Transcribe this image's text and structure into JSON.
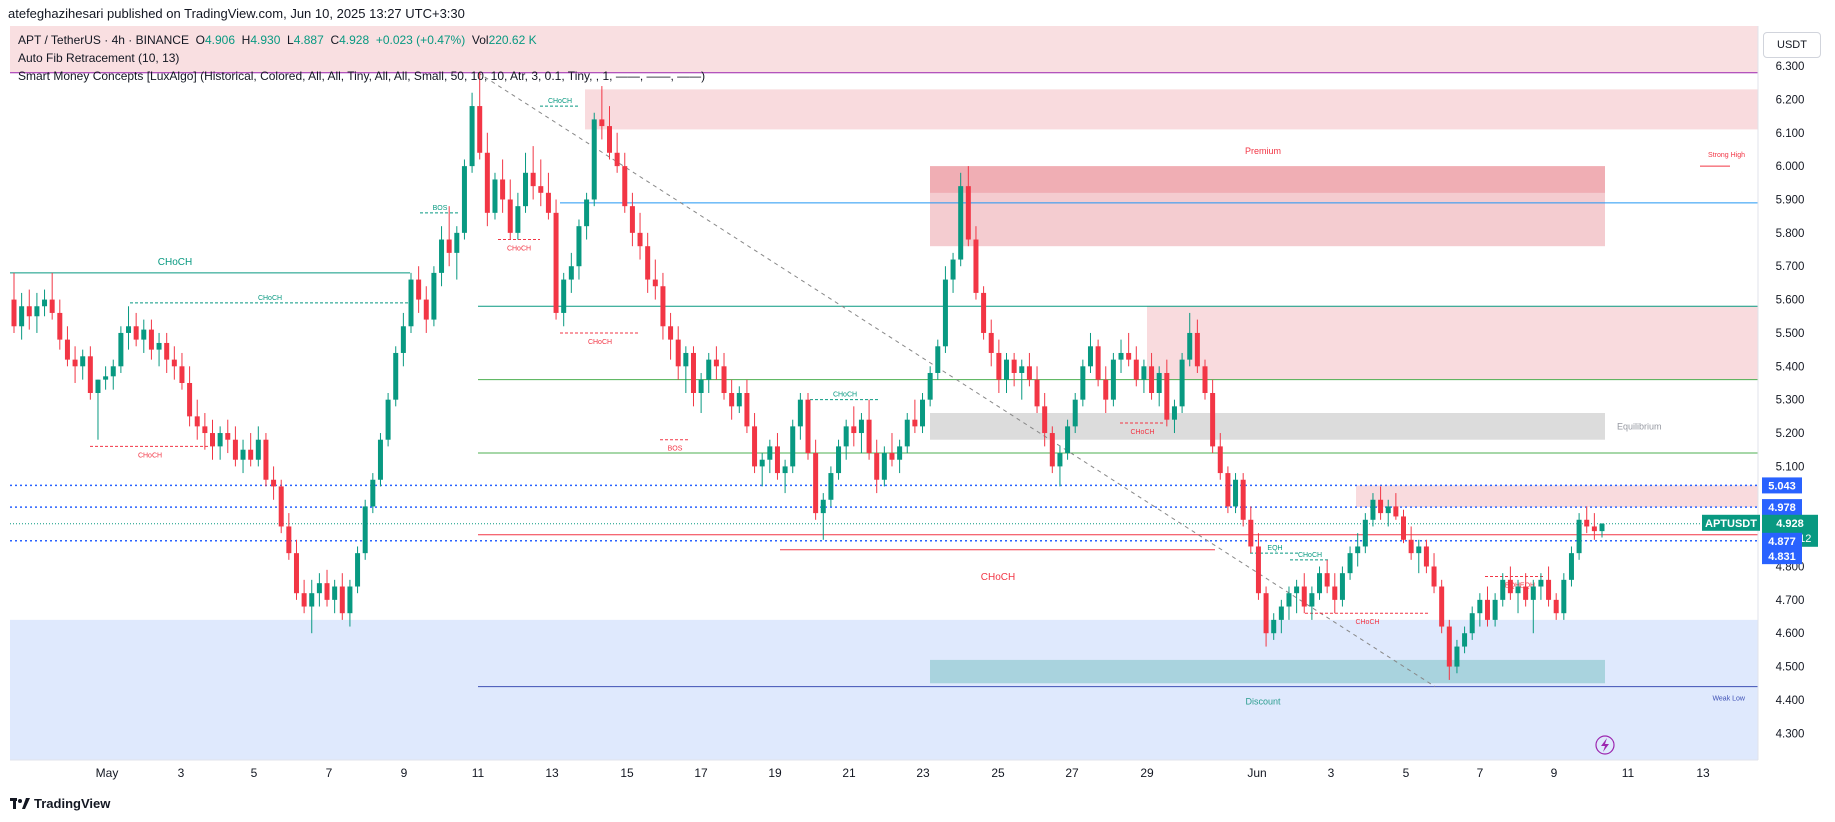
{
  "header": {
    "published_line": "atefeghazihesari published on TradingView.com, Jun 10, 2025 13:27 UTC+3:30"
  },
  "legend": {
    "symbol": "APT / TetherUS · 4h · BINANCE",
    "o_label": "O",
    "o": "4.906",
    "h_label": "H",
    "h": "4.930",
    "l_label": "L",
    "l": "4.887",
    "c_label": "C",
    "c": "4.928",
    "change": "+0.023 (+0.47%)",
    "vol_label": "Vol",
    "vol": "220.62 K",
    "indicator1": "Auto Fib Retracement (10, 13)",
    "indicator2": "Smart Money Concepts [LuxAlgo] (Historical, Colored, All, All, Tiny, All, All, Small, 50, 10, 10, Atr, 3, 0.1, Tiny, , 1, ——, ——, ——)"
  },
  "currency_button": "USDT",
  "footer": {
    "brand": "TradingView"
  },
  "colors": {
    "up": "#089981",
    "down": "#f23645",
    "fib_blue": "#2962ff",
    "premium_zone": "#f8d7da",
    "discount_zone": "#dbe7fd",
    "smc_green": "#089981",
    "smc_red": "#f23645"
  },
  "chart_data": {
    "type": "candlestick",
    "title": "APT / TetherUS · 4h · BINANCE",
    "interval": "4h",
    "ylim": [
      4.22,
      6.42
    ],
    "y_ticks": [
      "6.300",
      "6.200",
      "6.100",
      "6.000",
      "5.900",
      "5.800",
      "5.700",
      "5.600",
      "5.500",
      "5.400",
      "5.300",
      "5.200",
      "5.100",
      "4.900",
      "4.800",
      "4.700",
      "4.600",
      "4.500",
      "4.400",
      "4.300"
    ],
    "x_ticks": [
      "May",
      "3",
      "5",
      "7",
      "9",
      "11",
      "13",
      "15",
      "17",
      "19",
      "21",
      "23",
      "25",
      "27",
      "29",
      "Jun",
      "3",
      "5",
      "7",
      "9",
      "11",
      "13"
    ],
    "ohlc": [
      [
        5.6,
        5.68,
        5.5,
        5.52
      ],
      [
        5.52,
        5.62,
        5.48,
        5.58
      ],
      [
        5.58,
        5.63,
        5.51,
        5.55
      ],
      [
        5.55,
        5.62,
        5.5,
        5.58
      ],
      [
        5.58,
        5.63,
        5.55,
        5.6
      ],
      [
        5.6,
        5.68,
        5.54,
        5.56
      ],
      [
        5.56,
        5.6,
        5.45,
        5.48
      ],
      [
        5.48,
        5.52,
        5.4,
        5.42
      ],
      [
        5.42,
        5.46,
        5.35,
        5.4
      ],
      [
        5.4,
        5.45,
        5.36,
        5.43
      ],
      [
        5.43,
        5.46,
        5.3,
        5.32
      ],
      [
        5.32,
        5.36,
        5.18,
        5.36
      ],
      [
        5.36,
        5.4,
        5.33,
        5.37
      ],
      [
        5.37,
        5.42,
        5.33,
        5.4
      ],
      [
        5.4,
        5.52,
        5.38,
        5.5
      ],
      [
        5.5,
        5.58,
        5.45,
        5.52
      ],
      [
        5.52,
        5.56,
        5.46,
        5.48
      ],
      [
        5.48,
        5.54,
        5.44,
        5.51
      ],
      [
        5.51,
        5.54,
        5.42,
        5.45
      ],
      [
        5.45,
        5.5,
        5.4,
        5.47
      ],
      [
        5.47,
        5.5,
        5.38,
        5.42
      ],
      [
        5.42,
        5.46,
        5.36,
        5.4
      ],
      [
        5.4,
        5.44,
        5.33,
        5.35
      ],
      [
        5.35,
        5.4,
        5.22,
        5.25
      ],
      [
        5.25,
        5.3,
        5.18,
        5.22
      ],
      [
        5.22,
        5.26,
        5.15,
        5.2
      ],
      [
        5.2,
        5.24,
        5.12,
        5.16
      ],
      [
        5.16,
        5.22,
        5.12,
        5.2
      ],
      [
        5.2,
        5.24,
        5.14,
        5.18
      ],
      [
        5.18,
        5.22,
        5.1,
        5.12
      ],
      [
        5.12,
        5.18,
        5.08,
        5.15
      ],
      [
        5.15,
        5.2,
        5.1,
        5.12
      ],
      [
        5.12,
        5.22,
        5.1,
        5.18
      ],
      [
        5.18,
        5.2,
        5.04,
        5.06
      ],
      [
        5.06,
        5.1,
        5.0,
        5.04
      ],
      [
        5.04,
        5.06,
        4.9,
        4.92
      ],
      [
        4.92,
        4.96,
        4.82,
        4.84
      ],
      [
        4.84,
        4.88,
        4.7,
        4.72
      ],
      [
        4.72,
        4.76,
        4.66,
        4.68
      ],
      [
        4.68,
        4.76,
        4.6,
        4.72
      ],
      [
        4.72,
        4.78,
        4.68,
        4.75
      ],
      [
        4.75,
        4.79,
        4.68,
        4.7
      ],
      [
        4.7,
        4.76,
        4.66,
        4.74
      ],
      [
        4.74,
        4.78,
        4.64,
        4.66
      ],
      [
        4.66,
        4.76,
        4.62,
        4.74
      ],
      [
        4.74,
        4.86,
        4.72,
        4.84
      ],
      [
        4.84,
        5.0,
        4.82,
        4.98
      ],
      [
        4.98,
        5.08,
        4.96,
        5.06
      ],
      [
        5.06,
        5.2,
        5.04,
        5.18
      ],
      [
        5.18,
        5.32,
        5.16,
        5.3
      ],
      [
        5.3,
        5.46,
        5.28,
        5.44
      ],
      [
        5.44,
        5.56,
        5.4,
        5.52
      ],
      [
        5.52,
        5.68,
        5.5,
        5.66
      ],
      [
        5.66,
        5.7,
        5.56,
        5.6
      ],
      [
        5.6,
        5.64,
        5.5,
        5.54
      ],
      [
        5.54,
        5.7,
        5.52,
        5.68
      ],
      [
        5.68,
        5.82,
        5.64,
        5.78
      ],
      [
        5.78,
        5.88,
        5.7,
        5.74
      ],
      [
        5.74,
        5.82,
        5.66,
        5.8
      ],
      [
        5.8,
        6.02,
        5.78,
        6.0
      ],
      [
        6.0,
        6.22,
        5.98,
        6.18
      ],
      [
        6.18,
        6.28,
        6.02,
        6.04
      ],
      [
        6.04,
        6.1,
        5.82,
        5.86
      ],
      [
        5.86,
        5.98,
        5.84,
        5.96
      ],
      [
        5.96,
        6.02,
        5.86,
        5.9
      ],
      [
        5.9,
        5.96,
        5.78,
        5.8
      ],
      [
        5.8,
        5.92,
        5.78,
        5.88
      ],
      [
        5.88,
        6.04,
        5.86,
        5.98
      ],
      [
        5.98,
        6.06,
        5.9,
        5.94
      ],
      [
        5.94,
        6.02,
        5.88,
        5.92
      ],
      [
        5.92,
        5.98,
        5.84,
        5.86
      ],
      [
        5.86,
        5.9,
        5.54,
        5.56
      ],
      [
        5.56,
        5.68,
        5.52,
        5.66
      ],
      [
        5.66,
        5.74,
        5.62,
        5.7
      ],
      [
        5.7,
        5.84,
        5.66,
        5.82
      ],
      [
        5.82,
        5.92,
        5.78,
        5.9
      ],
      [
        5.9,
        6.16,
        5.88,
        6.14
      ],
      [
        6.14,
        6.24,
        6.08,
        6.12
      ],
      [
        6.12,
        6.18,
        6.02,
        6.04
      ],
      [
        6.04,
        6.1,
        5.98,
        6.0
      ],
      [
        6.0,
        6.04,
        5.86,
        5.88
      ],
      [
        5.88,
        5.92,
        5.76,
        5.8
      ],
      [
        5.8,
        5.86,
        5.72,
        5.76
      ],
      [
        5.76,
        5.8,
        5.62,
        5.66
      ],
      [
        5.66,
        5.72,
        5.6,
        5.64
      ],
      [
        5.64,
        5.68,
        5.48,
        5.52
      ],
      [
        5.52,
        5.56,
        5.42,
        5.48
      ],
      [
        5.48,
        5.52,
        5.36,
        5.4
      ],
      [
        5.4,
        5.46,
        5.32,
        5.44
      ],
      [
        5.44,
        5.46,
        5.28,
        5.32
      ],
      [
        5.32,
        5.38,
        5.26,
        5.36
      ],
      [
        5.36,
        5.44,
        5.32,
        5.42
      ],
      [
        5.42,
        5.46,
        5.36,
        5.4
      ],
      [
        5.4,
        5.44,
        5.3,
        5.32
      ],
      [
        5.32,
        5.36,
        5.24,
        5.28
      ],
      [
        5.28,
        5.34,
        5.26,
        5.32
      ],
      [
        5.32,
        5.36,
        5.2,
        5.22
      ],
      [
        5.22,
        5.26,
        5.08,
        5.1
      ],
      [
        5.1,
        5.14,
        5.04,
        5.12
      ],
      [
        5.12,
        5.18,
        5.08,
        5.16
      ],
      [
        5.16,
        5.2,
        5.06,
        5.08
      ],
      [
        5.08,
        5.12,
        5.02,
        5.1
      ],
      [
        5.1,
        5.24,
        5.08,
        5.22
      ],
      [
        5.22,
        5.32,
        5.18,
        5.3
      ],
      [
        5.3,
        5.32,
        5.12,
        5.14
      ],
      [
        5.14,
        5.18,
        4.94,
        4.96
      ],
      [
        4.96,
        5.02,
        4.88,
        5.0
      ],
      [
        5.0,
        5.1,
        4.98,
        5.08
      ],
      [
        5.08,
        5.18,
        5.06,
        5.16
      ],
      [
        5.16,
        5.24,
        5.12,
        5.22
      ],
      [
        5.22,
        5.28,
        5.16,
        5.2
      ],
      [
        5.2,
        5.26,
        5.14,
        5.24
      ],
      [
        5.24,
        5.3,
        5.12,
        5.14
      ],
      [
        5.14,
        5.18,
        5.02,
        5.06
      ],
      [
        5.06,
        5.16,
        5.04,
        5.14
      ],
      [
        5.14,
        5.2,
        5.1,
        5.12
      ],
      [
        5.12,
        5.18,
        5.08,
        5.16
      ],
      [
        5.16,
        5.26,
        5.14,
        5.24
      ],
      [
        5.24,
        5.3,
        5.2,
        5.22
      ],
      [
        5.22,
        5.32,
        5.2,
        5.3
      ],
      [
        5.3,
        5.4,
        5.28,
        5.38
      ],
      [
        5.38,
        5.48,
        5.36,
        5.46
      ],
      [
        5.46,
        5.7,
        5.44,
        5.66
      ],
      [
        5.66,
        5.74,
        5.62,
        5.72
      ],
      [
        5.72,
        5.98,
        5.7,
        5.94
      ],
      [
        5.94,
        6.0,
        5.76,
        5.78
      ],
      [
        5.78,
        5.82,
        5.6,
        5.62
      ],
      [
        5.62,
        5.64,
        5.48,
        5.5
      ],
      [
        5.5,
        5.54,
        5.4,
        5.44
      ],
      [
        5.44,
        5.48,
        5.32,
        5.36
      ],
      [
        5.36,
        5.44,
        5.32,
        5.42
      ],
      [
        5.42,
        5.44,
        5.34,
        5.38
      ],
      [
        5.38,
        5.42,
        5.3,
        5.4
      ],
      [
        5.4,
        5.44,
        5.34,
        5.36
      ],
      [
        5.36,
        5.4,
        5.26,
        5.28
      ],
      [
        5.28,
        5.32,
        5.16,
        5.2
      ],
      [
        5.2,
        5.22,
        5.08,
        5.1
      ],
      [
        5.1,
        5.16,
        5.04,
        5.14
      ],
      [
        5.14,
        5.24,
        5.12,
        5.22
      ],
      [
        5.22,
        5.32,
        5.2,
        5.3
      ],
      [
        5.3,
        5.42,
        5.28,
        5.4
      ],
      [
        5.4,
        5.5,
        5.38,
        5.46
      ],
      [
        5.46,
        5.48,
        5.34,
        5.36
      ],
      [
        5.36,
        5.4,
        5.26,
        5.3
      ],
      [
        5.3,
        5.44,
        5.28,
        5.42
      ],
      [
        5.42,
        5.48,
        5.38,
        5.44
      ],
      [
        5.44,
        5.5,
        5.4,
        5.42
      ],
      [
        5.42,
        5.46,
        5.34,
        5.36
      ],
      [
        5.36,
        5.42,
        5.32,
        5.4
      ],
      [
        5.4,
        5.44,
        5.3,
        5.32
      ],
      [
        5.32,
        5.4,
        5.28,
        5.38
      ],
      [
        5.38,
        5.42,
        5.22,
        5.24
      ],
      [
        5.24,
        5.3,
        5.2,
        5.28
      ],
      [
        5.28,
        5.44,
        5.26,
        5.42
      ],
      [
        5.42,
        5.56,
        5.4,
        5.5
      ],
      [
        5.5,
        5.54,
        5.38,
        5.4
      ],
      [
        5.4,
        5.42,
        5.3,
        5.32
      ],
      [
        5.32,
        5.36,
        5.14,
        5.16
      ],
      [
        5.16,
        5.2,
        5.06,
        5.08
      ],
      [
        5.08,
        5.1,
        4.96,
        4.98
      ],
      [
        4.98,
        5.08,
        4.96,
        5.06
      ],
      [
        5.06,
        5.08,
        4.92,
        4.94
      ],
      [
        4.94,
        4.98,
        4.84,
        4.86
      ],
      [
        4.86,
        4.9,
        4.7,
        4.72
      ],
      [
        4.72,
        4.74,
        4.56,
        4.6
      ],
      [
        4.6,
        4.66,
        4.58,
        4.64
      ],
      [
        4.64,
        4.7,
        4.6,
        4.68
      ],
      [
        4.68,
        4.74,
        4.64,
        4.72
      ],
      [
        4.72,
        4.76,
        4.66,
        4.74
      ],
      [
        4.74,
        4.78,
        4.66,
        4.68
      ],
      [
        4.68,
        4.74,
        4.64,
        4.72
      ],
      [
        4.72,
        4.8,
        4.7,
        4.78
      ],
      [
        4.78,
        4.82,
        4.72,
        4.74
      ],
      [
        4.74,
        4.78,
        4.66,
        4.7
      ],
      [
        4.7,
        4.8,
        4.68,
        4.78
      ],
      [
        4.78,
        4.86,
        4.76,
        4.84
      ],
      [
        4.84,
        4.9,
        4.8,
        4.86
      ],
      [
        4.86,
        4.96,
        4.84,
        4.94
      ],
      [
        4.94,
        5.02,
        4.92,
        5.0
      ],
      [
        5.0,
        5.04,
        4.94,
        4.96
      ],
      [
        4.96,
        5.0,
        4.92,
        4.98
      ],
      [
        4.98,
        5.02,
        4.94,
        4.95
      ],
      [
        4.95,
        4.97,
        4.87,
        4.88
      ],
      [
        4.88,
        4.92,
        4.82,
        4.84
      ],
      [
        4.84,
        4.88,
        4.78,
        4.86
      ],
      [
        4.86,
        4.88,
        4.78,
        4.8
      ],
      [
        4.8,
        4.84,
        4.72,
        4.74
      ],
      [
        4.74,
        4.76,
        4.6,
        4.62
      ],
      [
        4.62,
        4.64,
        4.46,
        4.5
      ],
      [
        4.5,
        4.58,
        4.48,
        4.56
      ],
      [
        4.56,
        4.62,
        4.54,
        4.6
      ],
      [
        4.6,
        4.68,
        4.58,
        4.66
      ],
      [
        4.66,
        4.72,
        4.62,
        4.7
      ],
      [
        4.7,
        4.74,
        4.62,
        4.64
      ],
      [
        4.64,
        4.72,
        4.62,
        4.7
      ],
      [
        4.7,
        4.78,
        4.68,
        4.76
      ],
      [
        4.76,
        4.8,
        4.7,
        4.72
      ],
      [
        4.72,
        4.76,
        4.66,
        4.74
      ],
      [
        4.74,
        4.78,
        4.68,
        4.7
      ],
      [
        4.7,
        4.76,
        4.6,
        4.74
      ],
      [
        4.74,
        4.78,
        4.7,
        4.76
      ],
      [
        4.76,
        4.8,
        4.68,
        4.7
      ],
      [
        4.7,
        4.72,
        4.64,
        4.66
      ],
      [
        4.66,
        4.78,
        4.64,
        4.76
      ],
      [
        4.76,
        4.86,
        4.74,
        4.84
      ],
      [
        4.84,
        4.96,
        4.82,
        4.94
      ],
      [
        4.94,
        4.98,
        4.9,
        4.92
      ],
      [
        4.92,
        4.96,
        4.88,
        4.906
      ],
      [
        4.906,
        4.93,
        4.887,
        4.928
      ]
    ],
    "price_labels": [
      {
        "value": 5.043,
        "text": "5.043"
      },
      {
        "value": 4.978,
        "text": "4.978"
      },
      {
        "value": 4.928,
        "text": "4.928",
        "symbol": "APTUSDT",
        "countdown": "02:02:12"
      },
      {
        "value": 4.877,
        "text": "4.877"
      },
      {
        "value": 4.831,
        "text": "4.831"
      }
    ],
    "annotations": [
      {
        "text": "CHoCH",
        "kind": "big-green"
      },
      {
        "text": "CHoCH",
        "kind": "big-red"
      },
      {
        "text": "Premium",
        "kind": "zone"
      },
      {
        "text": "Equilibrium",
        "kind": "zone"
      },
      {
        "text": "Discount",
        "kind": "zone"
      },
      {
        "text": "Strong High",
        "kind": "level"
      },
      {
        "text": "Weak Low",
        "kind": "level"
      },
      {
        "text": "BOS",
        "kind": "small"
      },
      {
        "text": "EQH",
        "kind": "small"
      },
      {
        "text": "EQL",
        "kind": "small"
      }
    ],
    "fib_levels": [
      6.28,
      5.58,
      5.36,
      5.14,
      5.0,
      4.95,
      4.9,
      4.88,
      4.44
    ]
  }
}
